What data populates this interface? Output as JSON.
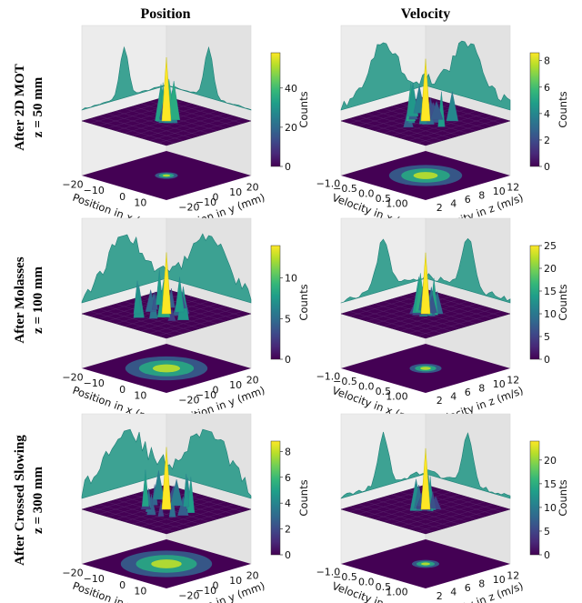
{
  "column_titles": [
    "Position",
    "Velocity"
  ],
  "row_titles": [
    [
      "After 2D MOT",
      "z = 50 mm"
    ],
    [
      "After Molasses",
      "z = 100 mm"
    ],
    [
      "After Crossed Slowing",
      "z = 300 mm"
    ]
  ],
  "colormap": [
    "#440154",
    "#482878",
    "#3e4989",
    "#31688e",
    "#26828e",
    "#1f9e89",
    "#35b779",
    "#6ece58",
    "#b5de2b",
    "#fde725"
  ],
  "chart_data": [
    {
      "type": "surface3d",
      "row": 0,
      "col": 0,
      "xlabel": "Position in x (mm)",
      "ylabel": "Position in y (mm)",
      "colorbar_label": "Counts",
      "x_ticks": [
        "−20",
        "−10",
        "0",
        "10"
      ],
      "y_ticks": [
        "−20",
        "−10",
        "0",
        "10",
        "20"
      ],
      "colorbar_ticks": [
        "0",
        "20",
        "40"
      ],
      "colorbar_range": [
        0,
        58
      ],
      "peak_counts": 58,
      "peak_rel_width": 0.05,
      "noise": 0.03
    },
    {
      "type": "surface3d",
      "row": 0,
      "col": 1,
      "xlabel": "Velocity in x (m/s)",
      "ylabel": "Velocity in z (m/s)",
      "colorbar_label": "Counts",
      "x_ticks": [
        "−1.0",
        "−0.5",
        "0.0",
        "0.5",
        "1.00"
      ],
      "y_ticks": [
        "2",
        "4",
        "6",
        "8",
        "10",
        "12"
      ],
      "colorbar_ticks": [
        "0",
        "2",
        "4",
        "6",
        "8"
      ],
      "colorbar_range": [
        0,
        8.6
      ],
      "peak_counts": 8.4,
      "peak_rel_width": 0.16,
      "noise": 0.25
    },
    {
      "type": "surface3d",
      "row": 1,
      "col": 0,
      "xlabel": "Position in x (mm)",
      "ylabel": "Position in y (mm)",
      "colorbar_label": "Counts",
      "x_ticks": [
        "−20",
        "−10",
        "0",
        "10"
      ],
      "y_ticks": [
        "−20",
        "−10",
        "0",
        "10",
        "20"
      ],
      "colorbar_ticks": [
        "0",
        "5",
        "10"
      ],
      "colorbar_range": [
        0,
        14
      ],
      "peak_counts": 13.5,
      "peak_rel_width": 0.18,
      "noise": 0.3
    },
    {
      "type": "surface3d",
      "row": 1,
      "col": 1,
      "xlabel": "Velocity in x (m/s)",
      "ylabel": "Velocity in z (m/s)",
      "colorbar_label": "Counts",
      "x_ticks": [
        "−1.0",
        "−0.5",
        "0.0",
        "0.5",
        "1.00"
      ],
      "y_ticks": [
        "2",
        "4",
        "6",
        "8",
        "10",
        "12"
      ],
      "colorbar_ticks": [
        "0",
        "5",
        "10",
        "15",
        "20",
        "25"
      ],
      "colorbar_range": [
        0,
        25
      ],
      "peak_counts": 24,
      "peak_rel_width": 0.07,
      "noise": 0.12
    },
    {
      "type": "surface3d",
      "row": 2,
      "col": 0,
      "xlabel": "Position in x (mm)",
      "ylabel": "Position in y (mm)",
      "colorbar_label": "Counts",
      "x_ticks": [
        "−20",
        "−10",
        "0",
        "10"
      ],
      "y_ticks": [
        "−20",
        "−10",
        "0",
        "10",
        "20"
      ],
      "colorbar_ticks": [
        "0",
        "2",
        "4",
        "6",
        "8"
      ],
      "colorbar_range": [
        0,
        8.8
      ],
      "peak_counts": 8.6,
      "peak_rel_width": 0.2,
      "noise": 0.35
    },
    {
      "type": "surface3d",
      "row": 2,
      "col": 1,
      "xlabel": "Velocity in x (m/s)",
      "ylabel": "Velocity in z (m/s)",
      "colorbar_label": "Counts",
      "x_ticks": [
        "−1.0",
        "−0.5",
        "0.0",
        "0.5",
        "1.00"
      ],
      "y_ticks": [
        "2",
        "4",
        "6",
        "8",
        "10",
        "12"
      ],
      "colorbar_ticks": [
        "0",
        "5",
        "10",
        "15",
        "20"
      ],
      "colorbar_range": [
        0,
        24
      ],
      "peak_counts": 23,
      "peak_rel_width": 0.06,
      "noise": 0.1
    }
  ]
}
